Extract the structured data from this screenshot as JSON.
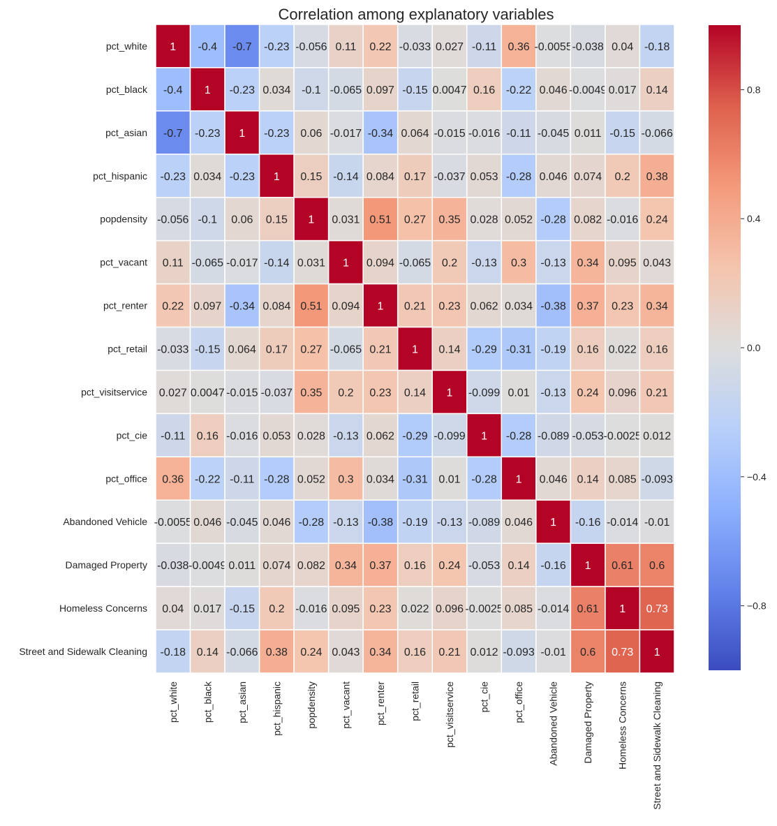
{
  "chart_data": {
    "type": "heatmap",
    "title": "Correlation among explanatory variables",
    "xlabel": "",
    "ylabel": "",
    "variables": [
      "pct_white",
      "pct_black",
      "pct_asian",
      "pct_hispanic",
      "popdensity",
      "pct_vacant",
      "pct_renter",
      "pct_retail",
      "pct_visitservice",
      "pct_cie",
      "pct_office",
      "Abandoned Vehicle",
      "Damaged Property",
      "Homeless Concerns",
      "Street and Sidewalk Cleaning"
    ],
    "values": [
      [
        1,
        -0.4,
        -0.7,
        -0.23,
        -0.056,
        0.11,
        0.22,
        -0.033,
        0.027,
        -0.11,
        0.36,
        -0.0055,
        -0.038,
        0.04,
        -0.18
      ],
      [
        -0.4,
        1,
        -0.23,
        0.034,
        -0.1,
        -0.065,
        0.097,
        -0.15,
        0.0047,
        0.16,
        -0.22,
        0.046,
        -0.0049,
        0.017,
        0.14
      ],
      [
        -0.7,
        -0.23,
        1,
        -0.23,
        0.06,
        -0.017,
        -0.34,
        0.064,
        -0.015,
        -0.016,
        -0.11,
        -0.045,
        0.011,
        -0.15,
        -0.066
      ],
      [
        -0.23,
        0.034,
        -0.23,
        1,
        0.15,
        -0.14,
        0.084,
        0.17,
        -0.037,
        0.053,
        -0.28,
        0.046,
        0.074,
        0.2,
        0.38
      ],
      [
        -0.056,
        -0.1,
        0.06,
        0.15,
        1,
        0.031,
        0.51,
        0.27,
        0.35,
        0.028,
        0.052,
        -0.28,
        0.082,
        -0.016,
        0.24
      ],
      [
        0.11,
        -0.065,
        -0.017,
        -0.14,
        0.031,
        1,
        0.094,
        -0.065,
        0.2,
        -0.13,
        0.3,
        -0.13,
        0.34,
        0.095,
        0.043
      ],
      [
        0.22,
        0.097,
        -0.34,
        0.084,
        0.51,
        0.094,
        1,
        0.21,
        0.23,
        0.062,
        0.034,
        -0.38,
        0.37,
        0.23,
        0.34
      ],
      [
        -0.033,
        -0.15,
        0.064,
        0.17,
        0.27,
        -0.065,
        0.21,
        1,
        0.14,
        -0.29,
        -0.31,
        -0.19,
        0.16,
        0.022,
        0.16
      ],
      [
        0.027,
        0.0047,
        -0.015,
        -0.037,
        0.35,
        0.2,
        0.23,
        0.14,
        1,
        -0.099,
        0.01,
        -0.13,
        0.24,
        0.096,
        0.21
      ],
      [
        -0.11,
        0.16,
        -0.016,
        0.053,
        0.028,
        -0.13,
        0.062,
        -0.29,
        -0.099,
        1,
        -0.28,
        -0.089,
        -0.053,
        -0.0025,
        0.012
      ],
      [
        0.36,
        -0.22,
        -0.11,
        -0.28,
        0.052,
        0.3,
        0.034,
        -0.31,
        0.01,
        -0.28,
        1,
        0.046,
        0.14,
        0.085,
        -0.093
      ],
      [
        -0.0055,
        0.046,
        -0.045,
        0.046,
        -0.28,
        -0.13,
        -0.38,
        -0.19,
        -0.13,
        -0.089,
        0.046,
        1,
        -0.16,
        -0.014,
        -0.01
      ],
      [
        -0.038,
        -0.0049,
        0.011,
        0.074,
        0.082,
        0.34,
        0.37,
        0.16,
        0.24,
        -0.053,
        0.14,
        -0.16,
        1,
        0.61,
        0.6
      ],
      [
        0.04,
        0.017,
        -0.15,
        0.2,
        -0.016,
        0.095,
        0.23,
        0.022,
        0.096,
        -0.0025,
        0.085,
        -0.014,
        0.61,
        1,
        0.73
      ],
      [
        -0.18,
        0.14,
        -0.066,
        0.38,
        0.24,
        0.043,
        0.34,
        0.16,
        0.21,
        0.012,
        -0.093,
        -0.01,
        0.6,
        0.73,
        1
      ]
    ],
    "colormap": "coolwarm",
    "vmin": -1,
    "vmax": 1,
    "colorbar": {
      "ticks": [
        -0.8,
        -0.4,
        0.0,
        0.4,
        0.8
      ],
      "tick_labels": [
        "−0.8",
        "−0.4",
        "0.0",
        "0.4",
        "0.8"
      ]
    },
    "annotated": true,
    "grid_lines": "white",
    "legend": "colorbar-right"
  }
}
